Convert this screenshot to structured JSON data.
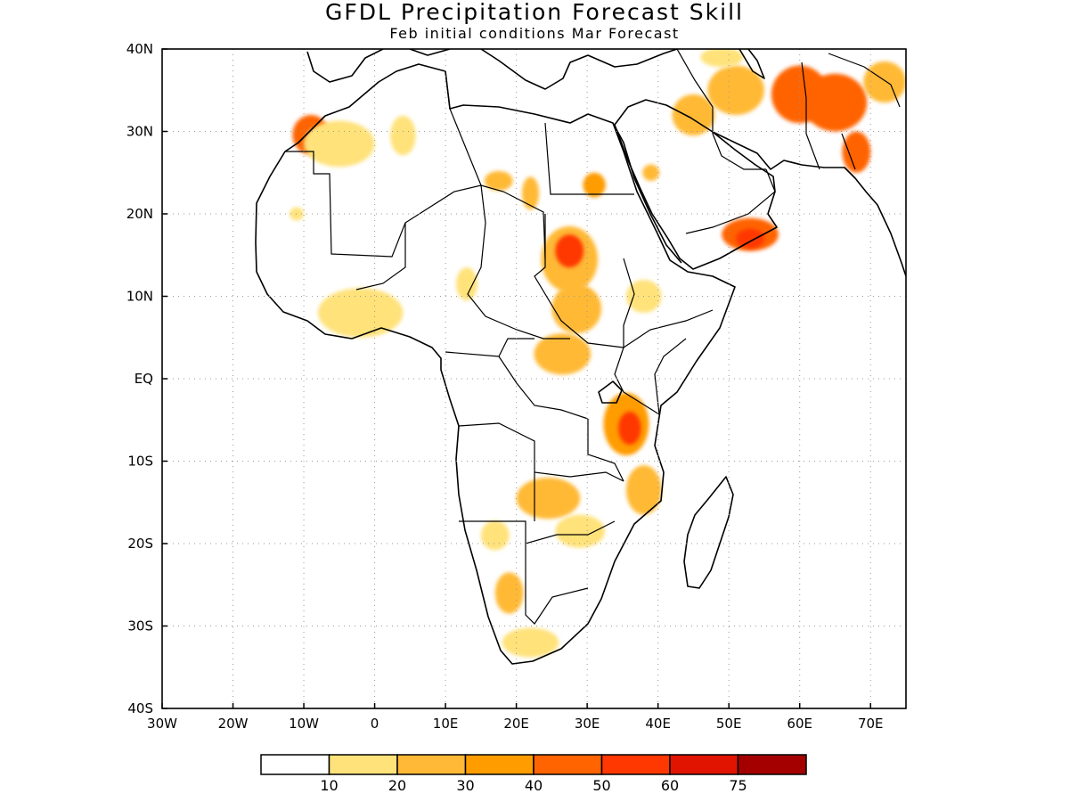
{
  "title": "GFDL Precipitation Forecast Skill",
  "subtitle": "Feb initial conditions  Mar Forecast",
  "map": {
    "lon_range": [
      -30,
      75
    ],
    "lat_range": [
      -40,
      40
    ],
    "grid": true,
    "x_ticks": [
      {
        "lon": -30,
        "label": "30W"
      },
      {
        "lon": -20,
        "label": "20W"
      },
      {
        "lon": -10,
        "label": "10W"
      },
      {
        "lon": 0,
        "label": "0"
      },
      {
        "lon": 10,
        "label": "10E"
      },
      {
        "lon": 20,
        "label": "20E"
      },
      {
        "lon": 30,
        "label": "30E"
      },
      {
        "lon": 40,
        "label": "40E"
      },
      {
        "lon": 50,
        "label": "50E"
      },
      {
        "lon": 60,
        "label": "60E"
      },
      {
        "lon": 70,
        "label": "70E"
      }
    ],
    "y_ticks": [
      {
        "lat": 40,
        "label": "40N"
      },
      {
        "lat": 30,
        "label": "30N"
      },
      {
        "lat": 20,
        "label": "20N"
      },
      {
        "lat": 10,
        "label": "10N"
      },
      {
        "lat": 0,
        "label": "EQ"
      },
      {
        "lat": -10,
        "label": "10S"
      },
      {
        "lat": -20,
        "label": "20S"
      },
      {
        "lat": -30,
        "label": "30S"
      },
      {
        "lat": -40,
        "label": "40S"
      }
    ]
  },
  "colorbar": {
    "colors": [
      "#ffffff",
      "#ffe27a",
      "#ffb936",
      "#ff9c00",
      "#ff6400",
      "#ff3700",
      "#e11400",
      "#a50000"
    ],
    "labels": [
      "10",
      "20",
      "30",
      "40",
      "50",
      "60",
      "75"
    ]
  },
  "skill_regions": [
    {
      "lon": -9,
      "lat": 29.6,
      "rx": 2.6,
      "ry": 2.4,
      "level": 4
    },
    {
      "lon": -5,
      "lat": 28.5,
      "rx": 5,
      "ry": 2.8,
      "level": 1
    },
    {
      "lon": 4,
      "lat": 29.5,
      "rx": 1.8,
      "ry": 2.4,
      "level": 1
    },
    {
      "lon": 17.5,
      "lat": 24,
      "rx": 2,
      "ry": 1.2,
      "level": 2
    },
    {
      "lon": 22,
      "lat": 22.5,
      "rx": 1.2,
      "ry": 2,
      "level": 2
    },
    {
      "lon": 31,
      "lat": 23.5,
      "rx": 1.6,
      "ry": 1.5,
      "level": 3
    },
    {
      "lon": -11,
      "lat": 20,
      "rx": 1,
      "ry": 0.8,
      "level": 1
    },
    {
      "lon": 27.5,
      "lat": 14.5,
      "rx": 4,
      "ry": 4,
      "level": 2
    },
    {
      "lon": 27.5,
      "lat": 15.5,
      "rx": 2,
      "ry": 2,
      "level": 5
    },
    {
      "lon": 28.5,
      "lat": 8.5,
      "rx": 3.5,
      "ry": 3,
      "level": 2
    },
    {
      "lon": 26.5,
      "lat": 3,
      "rx": 4,
      "ry": 2.5,
      "level": 2
    },
    {
      "lon": 13,
      "lat": 11.5,
      "rx": 1.5,
      "ry": 2,
      "level": 1
    },
    {
      "lon": -2,
      "lat": 8,
      "rx": 6,
      "ry": 3,
      "level": 1
    },
    {
      "lon": 38,
      "lat": 10,
      "rx": 2.5,
      "ry": 2,
      "level": 1
    },
    {
      "lon": 35.5,
      "lat": -5.5,
      "rx": 3.2,
      "ry": 3.8,
      "level": 3
    },
    {
      "lon": 36,
      "lat": -6,
      "rx": 1.6,
      "ry": 2,
      "level": 5
    },
    {
      "lon": 38,
      "lat": -13.5,
      "rx": 2.5,
      "ry": 3,
      "level": 2
    },
    {
      "lon": 24.5,
      "lat": -14.5,
      "rx": 4.5,
      "ry": 2.5,
      "level": 2
    },
    {
      "lon": 29,
      "lat": -18.5,
      "rx": 3.5,
      "ry": 2,
      "level": 1
    },
    {
      "lon": 17,
      "lat": -19,
      "rx": 2,
      "ry": 1.8,
      "level": 1
    },
    {
      "lon": 19,
      "lat": -26,
      "rx": 2,
      "ry": 2.5,
      "level": 2
    },
    {
      "lon": 22,
      "lat": -32,
      "rx": 4,
      "ry": 1.8,
      "level": 1
    },
    {
      "lon": 53,
      "lat": 17.5,
      "rx": 4,
      "ry": 2,
      "level": 4
    },
    {
      "lon": 53,
      "lat": 17,
      "rx": 2,
      "ry": 1.2,
      "level": 5
    },
    {
      "lon": 51,
      "lat": 35,
      "rx": 4,
      "ry": 3,
      "level": 2
    },
    {
      "lon": 60,
      "lat": 34.5,
      "rx": 4,
      "ry": 3.5,
      "level": 4
    },
    {
      "lon": 65,
      "lat": 33.5,
      "rx": 4.5,
      "ry": 3.5,
      "level": 4
    },
    {
      "lon": 68,
      "lat": 27.5,
      "rx": 2,
      "ry": 2.5,
      "level": 4
    },
    {
      "lon": 45,
      "lat": 32,
      "rx": 3,
      "ry": 2.5,
      "level": 2
    },
    {
      "lon": 39,
      "lat": 25,
      "rx": 1.2,
      "ry": 1,
      "level": 2
    },
    {
      "lon": 49,
      "lat": 39,
      "rx": 3,
      "ry": 1.2,
      "level": 1
    },
    {
      "lon": 72,
      "lat": 36,
      "rx": 3,
      "ry": 2.5,
      "level": 2
    }
  ]
}
